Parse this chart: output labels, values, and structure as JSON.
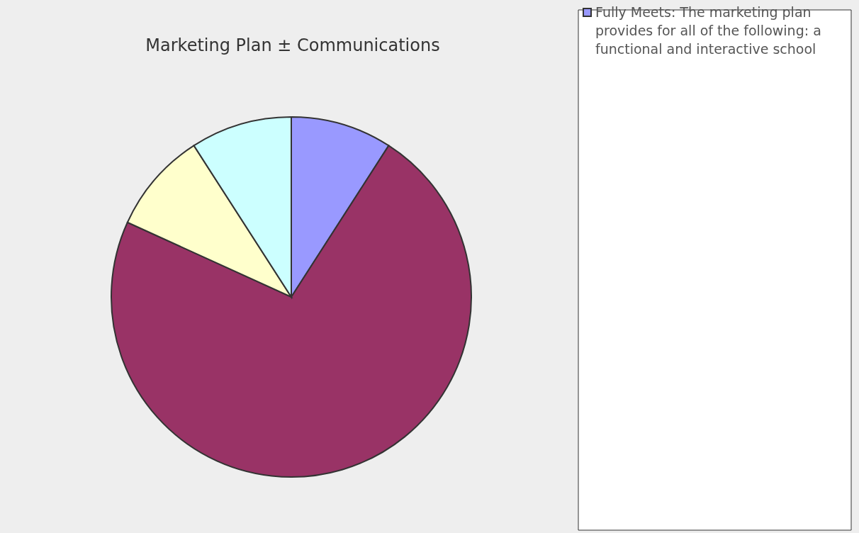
{
  "chart_data": {
    "type": "pie",
    "title": "Marketing Plan ± Communications",
    "categories": [
      "Fully Meets: The marketing plan provides for all of the following: a functional and interactive school",
      null,
      null,
      null
    ],
    "values": [
      9.1,
      72.7,
      9.1,
      9.1
    ],
    "colors": [
      "#9999ff",
      "#993366",
      "#ffffcc",
      "#ccffff"
    ],
    "legend": "right"
  }
}
